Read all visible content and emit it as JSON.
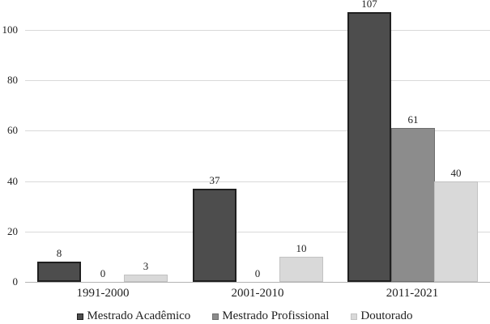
{
  "chart_data": {
    "type": "bar",
    "categories": [
      "1991-2000",
      "2001-2010",
      "2011-2021"
    ],
    "series": [
      {
        "name": "Mestrado Acadêmico",
        "values": [
          8,
          37,
          107
        ],
        "fill": "#4d4d4d",
        "border": "#1f1f1f"
      },
      {
        "name": "Mestrado Profissional",
        "values": [
          0,
          0,
          61
        ],
        "fill": "#8c8c8c",
        "border": "#6e6e6e"
      },
      {
        "name": "Doutorado",
        "values": [
          3,
          10,
          40
        ],
        "fill": "#d9d9d9",
        "border": "#c2c2c2"
      }
    ],
    "yticks": [
      0,
      20,
      40,
      60,
      80,
      100
    ],
    "ylim": [
      0,
      112
    ],
    "title": "",
    "xlabel": "",
    "ylabel": "",
    "value_labels": true,
    "grid": true,
    "legend_position": "bottom",
    "gridline_color": "#d9d9d9",
    "axis_line_color": "#b3b3b3",
    "text_color": "#1f1f1f",
    "background": "#ffffff"
  }
}
